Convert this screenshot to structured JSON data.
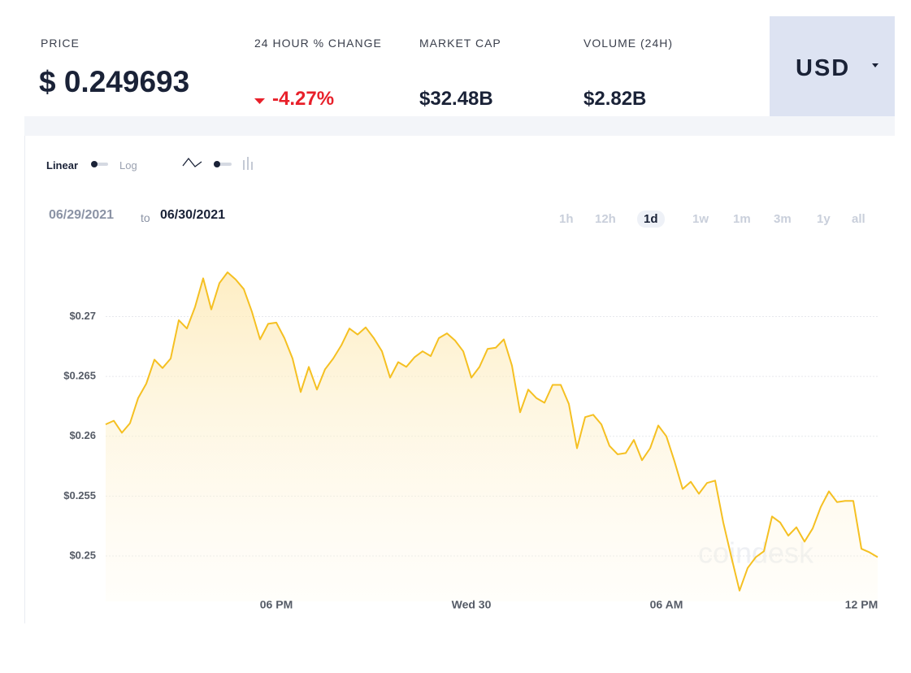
{
  "header": {
    "price_label": "PRICE",
    "price": "$ 0.249693",
    "change_label": "24 HOUR % CHANGE",
    "change": "-4.27%",
    "market_cap_label": "MARKET CAP",
    "market_cap": "$32.48B",
    "volume_label": "VOLUME (24H)",
    "volume": "$2.82B",
    "currency": "USD"
  },
  "controls": {
    "linear": "Linear",
    "log": "Log",
    "date_from": "06/29/2021",
    "date_to_word": "to",
    "date_to": "06/30/2021",
    "ranges": [
      "1h",
      "12h",
      "1d",
      "1w",
      "1m",
      "3m",
      "1y",
      "all"
    ],
    "active_range": 2
  },
  "watermark": "coindesk",
  "chart_data": {
    "type": "line",
    "categories": [
      null,
      null,
      null,
      null,
      null,
      null,
      null,
      null,
      null,
      null,
      null,
      null,
      null,
      null,
      null,
      null,
      null,
      null,
      null,
      null,
      null,
      "06 PM",
      null,
      null,
      null,
      null,
      null,
      null,
      null,
      null,
      null,
      null,
      null,
      null,
      null,
      null,
      null,
      null,
      null,
      null,
      null,
      null,
      null,
      null,
      null,
      "Wed 30",
      null,
      null,
      null,
      null,
      null,
      null,
      null,
      null,
      null,
      null,
      null,
      null,
      null,
      null,
      null,
      null,
      null,
      null,
      null,
      null,
      null,
      null,
      null,
      "06 AM",
      null,
      null,
      null,
      null,
      null,
      null,
      null,
      null,
      null,
      null,
      null,
      null,
      null,
      null,
      null,
      null,
      null,
      null,
      null,
      null,
      null,
      null,
      null,
      "12 PM",
      null,
      null
    ],
    "series": [
      {
        "name": "Price",
        "color": "#f5c022",
        "values": [
          0.261,
          0.2613,
          0.2603,
          0.2611,
          0.2632,
          0.2644,
          0.2664,
          0.2657,
          0.2665,
          0.2697,
          0.269,
          0.2708,
          0.2732,
          0.2706,
          0.2728,
          0.2737,
          0.2731,
          0.2723,
          0.2704,
          0.2681,
          0.2694,
          0.2695,
          0.2682,
          0.2665,
          0.2637,
          0.2658,
          0.2639,
          0.2656,
          0.2665,
          0.2676,
          0.269,
          0.2685,
          0.2691,
          0.2682,
          0.2671,
          0.2649,
          0.2662,
          0.2658,
          0.2666,
          0.2671,
          0.2667,
          0.2682,
          0.2686,
          0.268,
          0.2671,
          0.2649,
          0.2658,
          0.2673,
          0.2674,
          0.2681,
          0.2659,
          0.262,
          0.2639,
          0.2632,
          0.2628,
          0.2643,
          0.2643,
          0.2627,
          0.259,
          0.2616,
          0.2618,
          0.261,
          0.2592,
          0.2585,
          0.2586,
          0.2597,
          0.258,
          0.259,
          0.2609,
          0.26,
          0.2579,
          0.2556,
          0.2562,
          0.2552,
          0.2561,
          0.2563,
          0.2528,
          0.2499,
          0.2471,
          0.249,
          0.2499,
          0.2504,
          0.2533,
          0.2528,
          0.2517,
          0.2524,
          0.2512,
          0.2523,
          0.2541,
          0.2554,
          0.2545,
          0.2546,
          0.2546,
          0.2506,
          0.2503,
          0.2499
        ]
      }
    ],
    "ylim": [
      0.2462,
      0.2754
    ],
    "yticks": [
      {
        "value": 0.25,
        "label": "$0.25"
      },
      {
        "value": 0.255,
        "label": "$0.255"
      },
      {
        "value": 0.26,
        "label": "$0.26"
      },
      {
        "value": 0.265,
        "label": "$0.265"
      },
      {
        "value": 0.27,
        "label": "$0.27"
      }
    ],
    "grid": true
  }
}
